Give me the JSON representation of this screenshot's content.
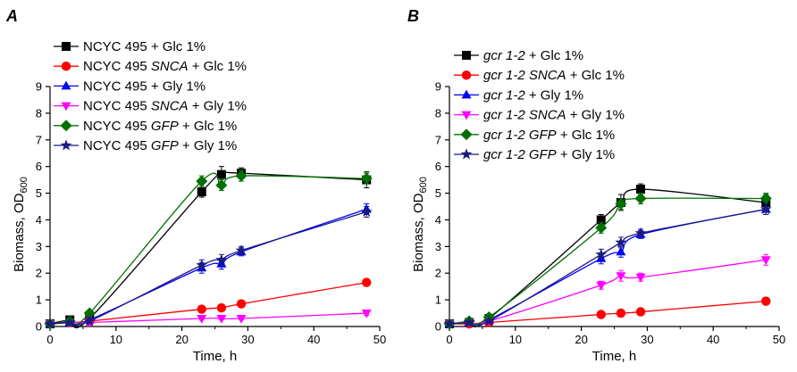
{
  "chart_data": [
    {
      "type": "line",
      "panel_label": "A",
      "xlabel": "Time, h",
      "ylabel": {
        "main": "Biomass, OD",
        "sub": "600"
      },
      "xlim": [
        0,
        50
      ],
      "ylim": [
        0,
        9
      ],
      "xticks": [
        0,
        10,
        20,
        30,
        40,
        50
      ],
      "yticks": [
        0,
        1,
        2,
        3,
        4,
        5,
        6,
        7,
        8,
        9
      ],
      "grid": false,
      "legend": "top-left",
      "series": [
        {
          "name": [
            {
              "t": "NCYC 495 + Glc 1%",
              "i": false
            }
          ],
          "color": "#000000",
          "marker": "square",
          "x": [
            0,
            3,
            6,
            23,
            26,
            29,
            48
          ],
          "y": [
            0.1,
            0.25,
            0.3,
            5.05,
            5.7,
            5.75,
            5.5
          ],
          "err": [
            0.05,
            0.05,
            0.05,
            0.2,
            0.3,
            0.2,
            0.3
          ]
        },
        {
          "name": [
            {
              "t": "NCYC 495 ",
              "i": false
            },
            {
              "t": "SNCA",
              "i": true
            },
            {
              "t": " + Glc 1%",
              "i": false
            }
          ],
          "color": "#ff0000",
          "marker": "circle",
          "x": [
            0,
            3,
            6,
            23,
            26,
            29,
            48
          ],
          "y": [
            0.1,
            0.15,
            0.2,
            0.65,
            0.7,
            0.85,
            1.65
          ],
          "err": [
            0.03,
            0.03,
            0.03,
            0.05,
            0.05,
            0.05,
            0.1
          ]
        },
        {
          "name": [
            {
              "t": "NCYC 495 + Gly 1%",
              "i": false
            }
          ],
          "color": "#0000ff",
          "marker": "triangle-up",
          "x": [
            0,
            3,
            6,
            23,
            26,
            29,
            48
          ],
          "y": [
            0.1,
            0.15,
            0.25,
            2.2,
            2.35,
            2.8,
            4.4
          ],
          "err": [
            0.03,
            0.03,
            0.05,
            0.2,
            0.2,
            0.15,
            0.2
          ]
        },
        {
          "name": [
            {
              "t": "NCYC 495 ",
              "i": false
            },
            {
              "t": "SNCA",
              "i": true
            },
            {
              "t": " + Gly 1%",
              "i": false
            }
          ],
          "color": "#ff00ff",
          "marker": "triangle-down",
          "x": [
            0,
            3,
            6,
            23,
            26,
            29,
            48
          ],
          "y": [
            0.1,
            0.15,
            0.15,
            0.3,
            0.3,
            0.3,
            0.5
          ],
          "err": [
            0.03,
            0.03,
            0.03,
            0.05,
            0.05,
            0.05,
            0.08
          ]
        },
        {
          "name": [
            {
              "t": "NCYC 495 ",
              "i": false
            },
            {
              "t": "GFP",
              "i": true
            },
            {
              "t": " + Glc 1%",
              "i": false
            }
          ],
          "color": "#007000",
          "marker": "diamond",
          "x": [
            0,
            3,
            6,
            23,
            26,
            29,
            48
          ],
          "y": [
            0.1,
            0.2,
            0.5,
            5.45,
            5.3,
            5.65,
            5.55
          ],
          "err": [
            0.03,
            0.05,
            0.05,
            0.2,
            0.2,
            0.2,
            0.2
          ]
        },
        {
          "name": [
            {
              "t": "NCYC 495 ",
              "i": false
            },
            {
              "t": "GFP",
              "i": true
            },
            {
              "t": " + Gly 1%",
              "i": false
            }
          ],
          "color": "#1a1a80",
          "marker": "star",
          "x": [
            0,
            3,
            6,
            23,
            26,
            29,
            48
          ],
          "y": [
            0.1,
            0.15,
            0.2,
            2.3,
            2.5,
            2.85,
            4.3
          ],
          "err": [
            0.03,
            0.03,
            0.05,
            0.2,
            0.2,
            0.15,
            0.2
          ]
        }
      ]
    },
    {
      "type": "line",
      "panel_label": "B",
      "xlabel": "Time, h",
      "ylabel": {
        "main": "Biomass, OD",
        "sub": "600"
      },
      "xlim": [
        0,
        50
      ],
      "ylim": [
        0,
        9
      ],
      "xticks": [
        0,
        10,
        20,
        30,
        40,
        50
      ],
      "yticks": [
        0,
        1,
        2,
        3,
        4,
        5,
        6,
        7,
        8,
        9
      ],
      "grid": false,
      "legend": "top-left",
      "series": [
        {
          "name": [
            {
              "t": "gcr 1-2",
              "i": true
            },
            {
              "t": " + Glc 1%",
              "i": false
            }
          ],
          "color": "#000000",
          "marker": "square",
          "x": [
            0,
            3,
            6,
            23,
            26,
            29,
            48
          ],
          "y": [
            0.1,
            0.15,
            0.3,
            4.0,
            4.65,
            5.15,
            4.65
          ],
          "err": [
            0.03,
            0.03,
            0.05,
            0.2,
            0.3,
            0.2,
            0.3
          ]
        },
        {
          "name": [
            {
              "t": "gcr 1-2  SNCA",
              "i": true
            },
            {
              "t": " + Glc 1%",
              "i": false
            }
          ],
          "color": "#ff0000",
          "marker": "circle",
          "x": [
            0,
            3,
            6,
            23,
            26,
            29,
            48
          ],
          "y": [
            0.1,
            0.1,
            0.15,
            0.45,
            0.5,
            0.55,
            0.95
          ],
          "err": [
            0.03,
            0.03,
            0.03,
            0.05,
            0.05,
            0.05,
            0.08
          ]
        },
        {
          "name": [
            {
              "t": "gcr 1-2",
              "i": true
            },
            {
              "t": " + Gly 1%",
              "i": false
            }
          ],
          "color": "#0000ff",
          "marker": "triangle-up",
          "x": [
            0,
            3,
            6,
            23,
            26,
            29,
            48
          ],
          "y": [
            0.1,
            0.15,
            0.25,
            2.55,
            2.8,
            3.45,
            4.4
          ],
          "err": [
            0.03,
            0.03,
            0.05,
            0.2,
            0.2,
            0.15,
            0.2
          ]
        },
        {
          "name": [
            {
              "t": "gcr 1-2  SNCA",
              "i": true
            },
            {
              "t": " + Gly 1%",
              "i": false
            }
          ],
          "color": "#ff00ff",
          "marker": "triangle-down",
          "x": [
            0,
            3,
            6,
            23,
            26,
            29,
            48
          ],
          "y": [
            0.1,
            0.15,
            0.2,
            1.55,
            1.9,
            1.85,
            2.5
          ],
          "err": [
            0.03,
            0.03,
            0.03,
            0.15,
            0.2,
            0.15,
            0.2
          ]
        },
        {
          "name": [
            {
              "t": "gcr 1-2 GFP",
              "i": true
            },
            {
              "t": " + Glc 1%",
              "i": false
            }
          ],
          "color": "#007000",
          "marker": "diamond",
          "x": [
            0,
            3,
            6,
            23,
            26,
            29,
            48
          ],
          "y": [
            0.1,
            0.2,
            0.35,
            3.7,
            4.6,
            4.8,
            4.8
          ],
          "err": [
            0.03,
            0.05,
            0.05,
            0.2,
            0.2,
            0.2,
            0.2
          ]
        },
        {
          "name": [
            {
              "t": "gcr 1-2 GFP",
              "i": true
            },
            {
              "t": " + Gly 1%",
              "i": false
            }
          ],
          "color": "#1a1a80",
          "marker": "star",
          "x": [
            0,
            3,
            6,
            23,
            26,
            29,
            48
          ],
          "y": [
            0.1,
            0.15,
            0.2,
            2.7,
            3.15,
            3.5,
            4.4
          ],
          "err": [
            0.03,
            0.03,
            0.05,
            0.2,
            0.2,
            0.15,
            0.2
          ]
        }
      ]
    }
  ]
}
